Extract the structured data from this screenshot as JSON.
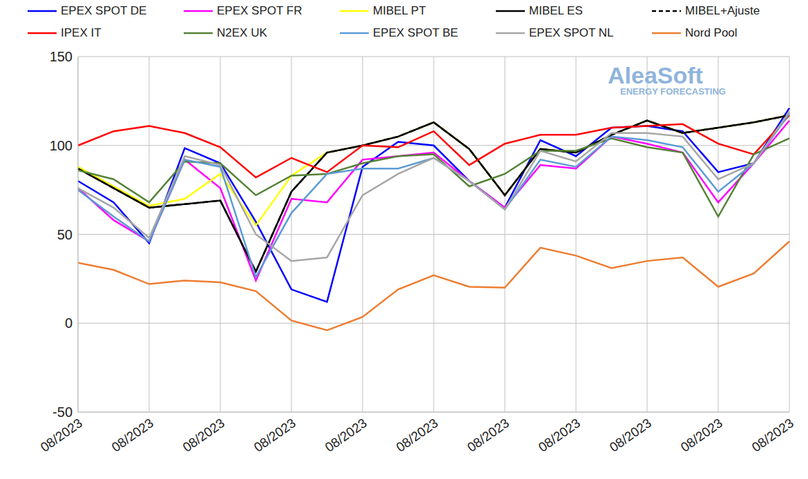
{
  "chart_data": {
    "type": "line",
    "legend": "top",
    "grid": true,
    "annotations": [
      "AleaSoft",
      "ENERGY FORECASTING"
    ],
    "categories": [
      "08/2023",
      null,
      "08/2023",
      null,
      "08/2023",
      null,
      "08/2023",
      null,
      "08/2023",
      null,
      "08/2023",
      null,
      "08/2023",
      null,
      "08/2023",
      null,
      "08/2023",
      null,
      "08/2023",
      null,
      "08/2023"
    ],
    "ylim": [
      -50,
      150
    ],
    "yticks": [
      -50,
      0,
      50,
      100,
      150
    ],
    "series": [
      {
        "name": "EPEX SPOT DE",
        "color": "#0000ff",
        "line_style": "solid",
        "marker": "none",
        "values": [
          80,
          68,
          45,
          98.5,
          90,
          57,
          19,
          12,
          88,
          102,
          100,
          80,
          65,
          103,
          94,
          110,
          111,
          108,
          85,
          90,
          121
        ]
      },
      {
        "name": "EPEX SPOT FR",
        "color": "#ff00ff",
        "line_style": "solid",
        "marker": "none",
        "values": [
          76,
          58,
          46,
          92,
          76,
          24,
          70,
          68,
          92,
          94,
          96,
          80,
          65,
          89,
          87,
          105,
          101,
          96,
          68,
          90,
          114
        ]
      },
      {
        "name": "MIBEL PT",
        "color": "#ffff00",
        "line_style": "solid",
        "marker": "none",
        "values": [
          88,
          77,
          66,
          70,
          84,
          55,
          83,
          96,
          100,
          105,
          113,
          98,
          72,
          98,
          96,
          106,
          114,
          107,
          110,
          113,
          117
        ]
      },
      {
        "name": "MIBEL ES",
        "color": "#000000",
        "line_style": "solid",
        "marker": "none",
        "values": [
          87,
          76,
          65,
          67,
          69,
          29,
          74,
          96,
          100,
          105,
          113,
          98,
          72,
          98,
          96,
          106,
          114,
          107,
          110,
          113,
          117
        ]
      },
      {
        "name": "MIBEL+Ajuste",
        "color": "#000000",
        "line_style": "dashed",
        "marker": "none",
        "values": [
          87,
          76,
          65,
          67,
          69,
          29,
          74,
          96,
          100,
          105,
          113,
          98,
          72,
          98,
          96,
          106,
          114,
          107,
          110,
          113,
          117
        ]
      },
      {
        "name": "IPEX IT",
        "color": "#ff0000",
        "line_style": "solid",
        "marker": "none",
        "values": [
          100,
          108,
          111,
          107,
          99,
          82,
          93,
          85,
          100,
          99,
          108,
          89,
          101,
          106,
          106,
          110,
          111,
          112,
          101,
          95,
          117
        ]
      },
      {
        "name": "N2EX UK",
        "color": "#548235",
        "line_style": "solid",
        "marker": "none",
        "values": [
          86,
          81,
          68,
          91,
          90,
          72,
          83,
          84,
          90,
          94,
          95,
          77,
          84,
          97,
          97,
          104,
          99,
          96,
          60,
          95,
          104
        ]
      },
      {
        "name": "EPEX SPOT BE",
        "color": "#5b9bd5",
        "line_style": "solid",
        "marker": "none",
        "values": [
          75,
          60,
          46,
          92,
          88,
          26,
          62,
          84,
          87,
          87,
          93,
          80,
          64,
          92,
          88,
          105,
          103,
          99,
          74,
          90,
          118
        ]
      },
      {
        "name": "EPEX SPOT NL",
        "color": "#a6a6a6",
        "line_style": "solid",
        "marker": "none",
        "values": [
          76,
          65,
          48,
          94,
          89,
          50,
          35,
          37,
          72,
          84,
          93,
          80,
          64,
          97,
          91,
          107,
          107,
          105,
          81,
          90,
          119
        ]
      },
      {
        "name": "Nord Pool",
        "color": "#ed7d31",
        "line_style": "solid",
        "marker": "none",
        "values": [
          34,
          30,
          22,
          24,
          23,
          18,
          1.5,
          -4,
          3.5,
          19,
          27,
          20.5,
          20,
          42.5,
          38,
          31,
          35,
          37,
          20.5,
          28,
          46
        ]
      }
    ]
  }
}
